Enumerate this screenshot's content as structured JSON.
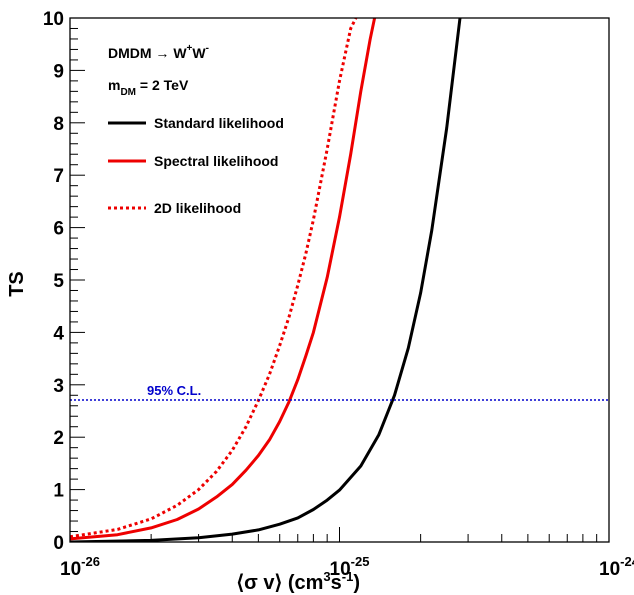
{
  "chart_data": {
    "type": "line",
    "xlabel": {
      "pre": "⟨σ v⟩ (cm",
      "sup1": "3",
      "mid": "s",
      "sup2": "-1",
      "post": ")"
    },
    "ylabel": "TS",
    "xscale": "log",
    "xlim": [
      1e-26,
      1e-24
    ],
    "ylim": [
      0,
      10
    ],
    "grid": false,
    "x_ticks": [
      {
        "value": 1e-26,
        "base": "10",
        "exp": "-26"
      },
      {
        "value": 1e-25,
        "base": "10",
        "exp": "-25"
      },
      {
        "value": 1e-24,
        "base": "10",
        "exp": "-24"
      }
    ],
    "y_ticks": [
      0,
      1,
      2,
      3,
      4,
      5,
      6,
      7,
      8,
      9,
      10
    ],
    "annotations": {
      "process": {
        "pre": "DMDM → W",
        "sup1": "+",
        "mid": "W",
        "sup2": "-"
      },
      "mass": {
        "pre": "m",
        "sub": "DM",
        "post": " = 2 TeV"
      }
    },
    "legend_position": "top-left",
    "threshold": {
      "y": 2.71,
      "label": "95% C.L.",
      "color": "#0000cc",
      "style": "dotted"
    },
    "series": [
      {
        "name": "Standard likelihood",
        "color": "#000000",
        "style": "solid",
        "x": [
          1e-26,
          2e-26,
          3e-26,
          4e-26,
          5e-26,
          6e-26,
          7e-26,
          8e-26,
          9e-26,
          1e-25,
          1.2e-25,
          1.4e-25,
          1.6e-25,
          1.8e-25,
          2e-25,
          2.2e-25,
          2.5e-25,
          2.8e-25
        ],
        "y": [
          0.0,
          0.03,
          0.08,
          0.15,
          0.23,
          0.34,
          0.46,
          0.62,
          0.8,
          0.99,
          1.45,
          2.05,
          2.8,
          3.7,
          4.75,
          5.95,
          7.9,
          10.0
        ]
      },
      {
        "name": "Spectral likelihood",
        "color": "#ee0000",
        "style": "solid",
        "x": [
          1e-26,
          1.5e-26,
          2e-26,
          2.5e-26,
          3e-26,
          3.5e-26,
          4e-26,
          4.5e-26,
          5e-26,
          5.5e-26,
          6e-26,
          6.5e-26,
          7e-26,
          7.5e-26,
          8e-26,
          9e-26,
          1e-25,
          1.1e-25,
          1.2e-25,
          1.3e-25,
          1.35e-25
        ],
        "y": [
          0.06,
          0.14,
          0.27,
          0.43,
          0.63,
          0.86,
          1.1,
          1.37,
          1.65,
          1.95,
          2.3,
          2.68,
          3.1,
          3.55,
          4.0,
          5.05,
          6.2,
          7.4,
          8.6,
          9.6,
          10.0
        ]
      },
      {
        "name": "2D likelihood",
        "color": "#ee0000",
        "style": "dotted",
        "x": [
          1e-26,
          1.5e-26,
          2e-26,
          2.5e-26,
          3e-26,
          3.5e-26,
          4e-26,
          4.5e-26,
          5e-26,
          5.5e-26,
          6e-26,
          6.5e-26,
          7e-26,
          7.5e-26,
          8e-26,
          9e-26,
          1e-25,
          1.1e-25,
          1.15e-25
        ],
        "y": [
          0.1,
          0.24,
          0.44,
          0.7,
          1.0,
          1.35,
          1.75,
          2.2,
          2.7,
          3.2,
          3.75,
          4.3,
          4.9,
          5.5,
          6.15,
          7.5,
          8.8,
          9.8,
          10.0
        ]
      }
    ]
  }
}
